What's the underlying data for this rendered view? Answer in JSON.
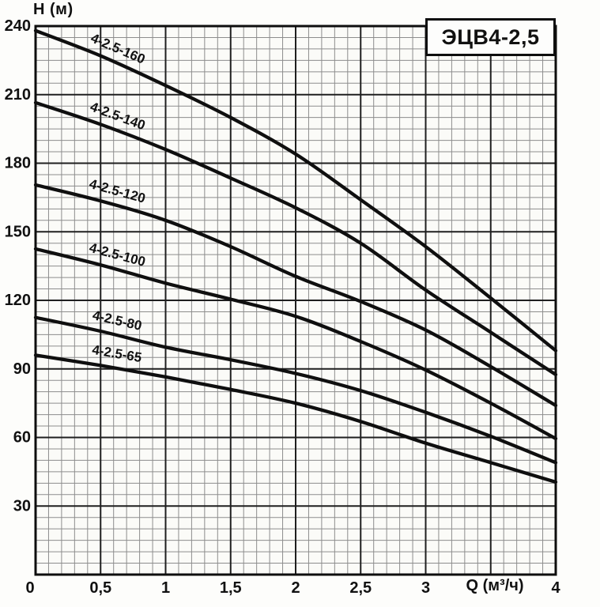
{
  "title_box": "ЭЦВ4-2,5",
  "chart_data": {
    "type": "line",
    "title": "ЭЦВ4-2,5",
    "xlabel": "Q (м³/ч)",
    "ylabel": "H (м)",
    "xlim": [
      0,
      4
    ],
    "ylim": [
      0,
      240
    ],
    "grid": true,
    "minor_grid": {
      "x_step": 0.1,
      "y_step": 5
    },
    "major_grid": {
      "x_step": 0.5,
      "y_step": 30
    },
    "x": [
      0,
      0.5,
      1,
      1.5,
      2,
      2.5,
      3,
      3.5,
      4
    ],
    "x_tick_values": [
      0,
      0.5,
      1,
      1.5,
      2,
      2.5,
      3,
      4
    ],
    "x_tick_labels": [
      "0",
      "0,5",
      "1",
      "1,5",
      "2",
      "2,5",
      "3",
      "4"
    ],
    "y_tick_values": [
      240,
      210,
      180,
      150,
      120,
      90,
      60,
      30
    ],
    "y_tick_labels": [
      "240",
      "210",
      "180",
      "150",
      "120",
      "90",
      "60",
      "30"
    ],
    "series": [
      {
        "name": "4-2.5-160",
        "nominal_head_m": 160,
        "values": [
          238,
          227,
          214,
          200,
          184,
          164,
          143.5,
          121,
          98
        ]
      },
      {
        "name": "4-2.5-140",
        "nominal_head_m": 140,
        "values": [
          206.5,
          197,
          186,
          173.5,
          160.5,
          145,
          124.5,
          106,
          87.5
        ]
      },
      {
        "name": "4-2.5-120",
        "nominal_head_m": 120,
        "values": [
          170.5,
          163.5,
          155,
          143.5,
          130.5,
          119.5,
          107,
          91,
          74
        ]
      },
      {
        "name": "4-2.5-100",
        "nominal_head_m": 100,
        "values": [
          142.5,
          135.5,
          127.5,
          120.5,
          113,
          102,
          89.5,
          75,
          59.5
        ]
      },
      {
        "name": "4-2.5-80",
        "nominal_head_m": 80,
        "values": [
          112.5,
          106.5,
          99.5,
          94,
          88,
          80.5,
          71,
          60.5,
          49
        ]
      },
      {
        "name": "4-2.5-65",
        "nominal_head_m": 65,
        "values": [
          96,
          91.5,
          86.5,
          81,
          75,
          67,
          57.5,
          49,
          40.5
        ]
      }
    ],
    "legend_position": "labels-on-curves"
  },
  "colors": {
    "curve": "#0f0f0f",
    "major_grid": "#1f1f1f",
    "minor_grid": "#8d8d8d",
    "frame": "#0e0e0e",
    "plot_background": "#fbfbf8",
    "page_background": "#fdfdfb",
    "text": "#111111"
  }
}
